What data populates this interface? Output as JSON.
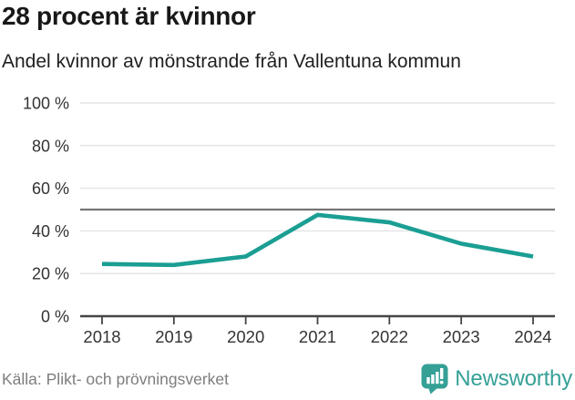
{
  "header": {
    "title": "28 procent är kvinnor",
    "subtitle": "Andel kvinnor av mönstrande från Vallentuna kommun"
  },
  "chart_data": {
    "type": "line",
    "title": "28 procent är kvinnor",
    "subtitle": "Andel kvinnor av mönstrande från Vallentuna kommun",
    "categories": [
      "2018",
      "2019",
      "2020",
      "2021",
      "2022",
      "2023",
      "2024"
    ],
    "series": [
      {
        "name": "Andel kvinnor av mönstrande",
        "values": [
          24.5,
          24,
          28,
          47.5,
          44,
          34,
          28
        ]
      }
    ],
    "xlabel": "",
    "ylabel": "",
    "ylim": [
      0,
      100
    ],
    "yticks": [
      0,
      20,
      40,
      60,
      80,
      100
    ],
    "ytick_labels": [
      "0 %",
      "20 %",
      "40 %",
      "60 %",
      "80 %",
      "100 %"
    ],
    "reference_line": 50,
    "grid": true,
    "legend": false,
    "colors": {
      "line": "#1b9e93",
      "gridline": "#e3e3e3",
      "reference_line": "#757575",
      "axis": "#454545",
      "tick_label": "#333333"
    }
  },
  "footer": {
    "source": "Källa: Plikt- och prövningsverket",
    "brand": "Newsworthy",
    "brand_color": "#35a096",
    "logo_icon": "bar-chart-badge-icon"
  }
}
